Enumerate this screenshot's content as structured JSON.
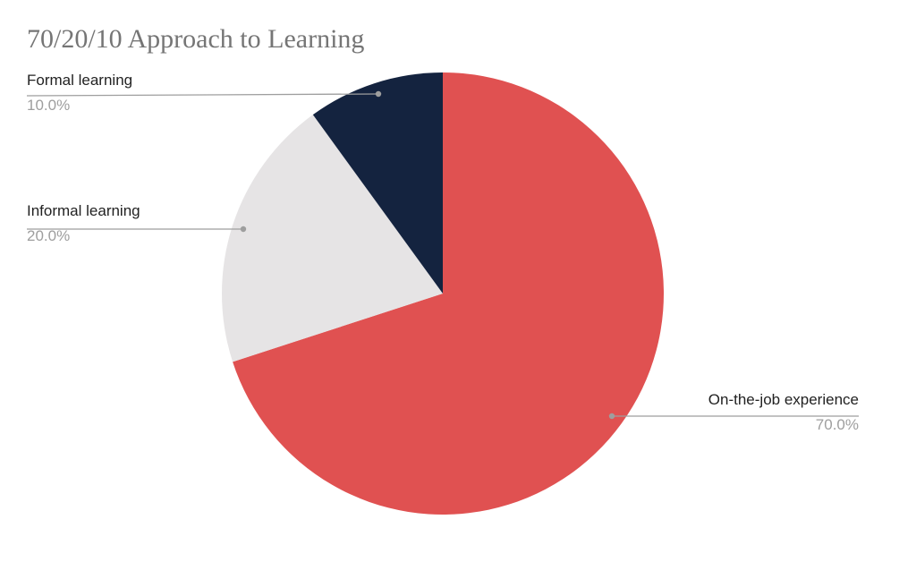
{
  "chart_data": {
    "type": "pie",
    "title": "70/20/10 Approach to Learning",
    "categories": [
      "On-the-job experience",
      "Informal learning",
      "Formal learning"
    ],
    "values": [
      70,
      20,
      10
    ],
    "value_labels": [
      "70.0%",
      "20.0%",
      "10.0%"
    ],
    "colors": [
      "#e05151",
      "#e6e4e5",
      "#14233f"
    ]
  }
}
